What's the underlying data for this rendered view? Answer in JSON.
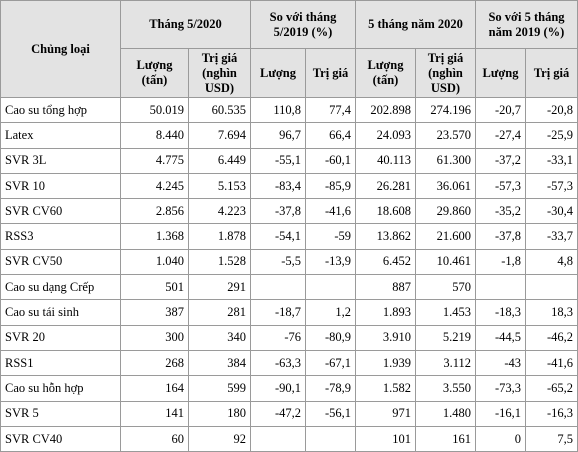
{
  "table": {
    "header": {
      "category": "Chủng loại",
      "groups": [
        "Tháng 5/2020",
        "So với tháng 5/2019 (%)",
        "5 tháng năm 2020",
        "So với 5 tháng năm 2019 (%)"
      ],
      "subheaders": [
        "Lượng (tấn)",
        "Trị giá (nghìn USD)",
        "Lượng",
        "Trị giá",
        "Lượng (tấn)",
        "Trị giá (nghìn USD)",
        "Lượng",
        "Trị giá"
      ]
    },
    "rows": [
      [
        "Cao su tổng hợp",
        "50.019",
        "60.535",
        "110,8",
        "77,4",
        "202.898",
        "274.196",
        "-20,7",
        "-20,8"
      ],
      [
        "Latex",
        "8.440",
        "7.694",
        "96,7",
        "66,4",
        "24.093",
        "23.570",
        "-27,4",
        "-25,9"
      ],
      [
        "SVR 3L",
        "4.775",
        "6.449",
        "-55,1",
        "-60,1",
        "40.113",
        "61.300",
        "-37,2",
        "-33,1"
      ],
      [
        "SVR 10",
        "4.245",
        "5.153",
        "-83,4",
        "-85,9",
        "26.281",
        "36.061",
        "-57,3",
        "-57,3"
      ],
      [
        "SVR CV60",
        "2.856",
        "4.223",
        "-37,8",
        "-41,6",
        "18.608",
        "29.860",
        "-35,2",
        "-30,4"
      ],
      [
        "RSS3",
        "1.368",
        "1.878",
        "-54,1",
        "-59",
        "13.862",
        "21.600",
        "-37,8",
        "-33,7"
      ],
      [
        "SVR CV50",
        "1.040",
        "1.528",
        "-5,5",
        "-13,9",
        "6.452",
        "10.461",
        "-1,8",
        "4,8"
      ],
      [
        "Cao su dạng Crếp",
        "501",
        "291",
        null,
        null,
        "887",
        "570",
        null,
        null
      ],
      [
        "Cao su tái sinh",
        "387",
        "281",
        "-18,7",
        "1,2",
        "1.893",
        "1.453",
        "-18,3",
        "18,3"
      ],
      [
        "SVR 20",
        "300",
        "340",
        "-76",
        "-80,9",
        "3.910",
        "5.219",
        "-44,5",
        "-46,2"
      ],
      [
        "RSS1",
        "268",
        "384",
        "-63,3",
        "-67,1",
        "1.939",
        "3.112",
        "-43",
        "-41,6"
      ],
      [
        "Cao su hỗn hợp",
        "164",
        "599",
        "-90,1",
        "-78,9",
        "1.582",
        "3.550",
        "-73,3",
        "-65,2"
      ],
      [
        "SVR 5",
        "141",
        "180",
        "-47,2",
        "-56,1",
        "971",
        "1.480",
        "-16,1",
        "-16,3"
      ],
      [
        "SVR CV40",
        "60",
        "92",
        null,
        null,
        "101",
        "161",
        "0",
        "7,5"
      ]
    ]
  }
}
